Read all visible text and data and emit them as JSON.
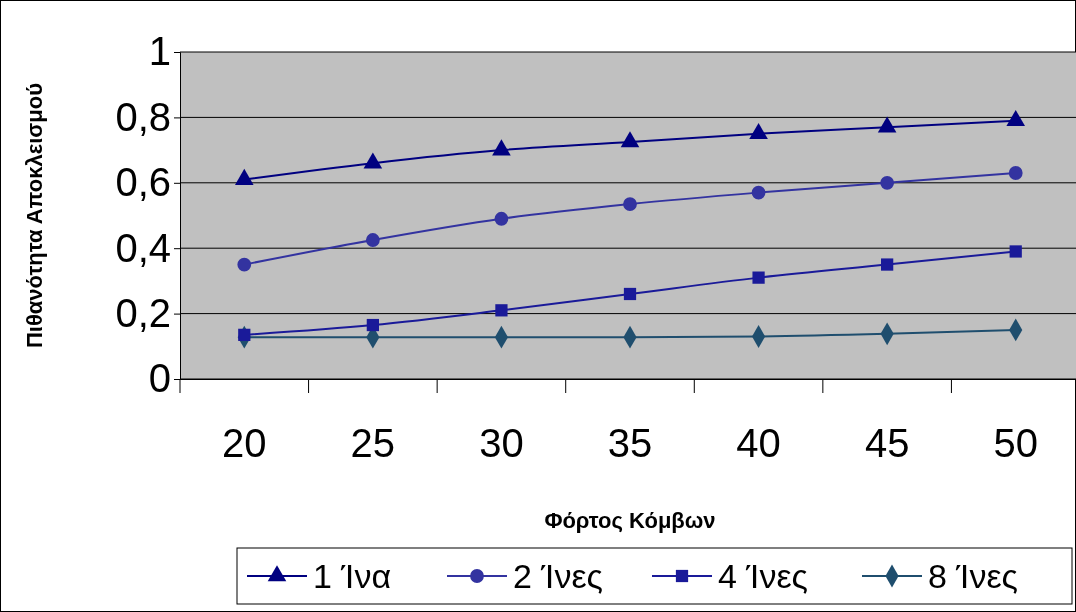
{
  "chart_data": {
    "type": "line",
    "xlabel": "Φόρτος Κόμβων",
    "ylabel": "Πιθανότητα Αποκλεισμού",
    "categories": [
      "20",
      "25",
      "30",
      "35",
      "40",
      "45",
      "50"
    ],
    "ylim": [
      0,
      1
    ],
    "yticks": [
      0,
      {
        "value": 0.2,
        "label": "0,2"
      },
      {
        "value": 0.4,
        "label": "0,4"
      },
      {
        "value": 0.6,
        "label": "0,6"
      },
      {
        "value": 0.8,
        "label": "0,8"
      },
      1
    ],
    "grid": "y",
    "legend": "bottom",
    "line_style": "solid",
    "series": [
      {
        "name": "1 Ίνα",
        "color": "#000080",
        "marker": "triangle",
        "values": [
          0.61,
          0.66,
          0.7,
          0.725,
          0.75,
          0.77,
          0.79
        ]
      },
      {
        "name": "2 Ίνες",
        "color": "#3333a0",
        "marker": "circle",
        "values": [
          0.35,
          0.425,
          0.49,
          0.535,
          0.57,
          0.6,
          0.63
        ]
      },
      {
        "name": "4 Ίνες",
        "color": "#1a1a99",
        "marker": "square",
        "values": [
          0.135,
          0.165,
          0.21,
          0.26,
          0.31,
          0.35,
          0.39
        ]
      },
      {
        "name": "8 Ίνες",
        "color": "#1f4e6e",
        "marker": "diamond",
        "values": [
          0.128,
          0.128,
          0.128,
          0.128,
          0.13,
          0.138,
          0.15
        ]
      }
    ]
  }
}
